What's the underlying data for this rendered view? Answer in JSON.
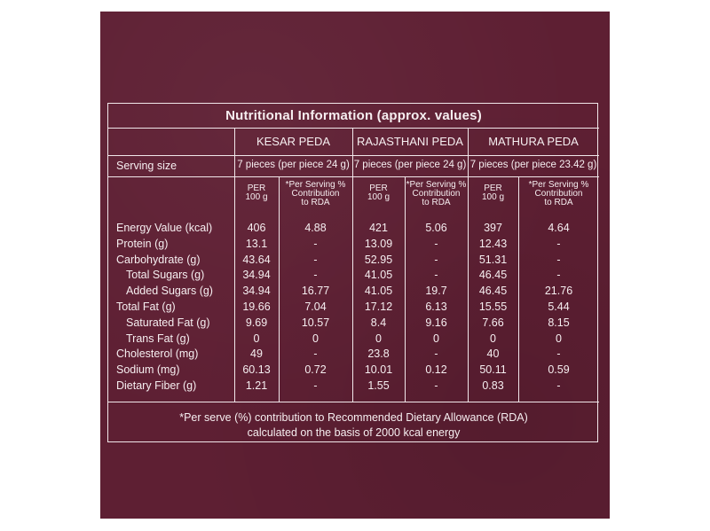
{
  "title": "Nutritional Information (approx. values)",
  "products": [
    "KESAR PEDA",
    "RAJASTHANI PEDA",
    "MATHURA PEDA"
  ],
  "serving_label": "Serving size",
  "serving_sizes": [
    "7 pieces (per piece 24 g)",
    "7 pieces (per piece 24 g)",
    "7 pieces (per piece 23.42 g)"
  ],
  "col_per_100": [
    "PER",
    "100 g"
  ],
  "col_rda": [
    "*Per Serving %",
    "Contribution",
    "to RDA"
  ],
  "rows": [
    {
      "label": "Energy Value (kcal)",
      "indent": false,
      "values": [
        "406",
        "4.88",
        "421",
        "5.06",
        "397",
        "4.64"
      ]
    },
    {
      "label": "Protein (g)",
      "indent": false,
      "values": [
        "13.1",
        "-",
        "13.09",
        "-",
        "12.43",
        "-"
      ]
    },
    {
      "label": "Carbohydrate (g)",
      "indent": false,
      "values": [
        "43.64",
        "-",
        "52.95",
        "-",
        "51.31",
        "-"
      ]
    },
    {
      "label": "Total Sugars (g)",
      "indent": true,
      "values": [
        "34.94",
        "-",
        "41.05",
        "-",
        "46.45",
        "-"
      ]
    },
    {
      "label": "Added Sugars (g)",
      "indent": true,
      "values": [
        "34.94",
        "16.77",
        "41.05",
        "19.7",
        "46.45",
        "21.76"
      ]
    },
    {
      "label": "Total Fat (g)",
      "indent": false,
      "values": [
        "19.66",
        "7.04",
        "17.12",
        "6.13",
        "15.55",
        "5.44"
      ]
    },
    {
      "label": "Saturated Fat (g)",
      "indent": true,
      "values": [
        "9.69",
        "10.57",
        "8.4",
        "9.16",
        "7.66",
        "8.15"
      ]
    },
    {
      "label": "Trans Fat (g)",
      "indent": true,
      "values": [
        "0",
        "0",
        "0",
        "0",
        "0",
        "0"
      ]
    },
    {
      "label": "Cholesterol (mg)",
      "indent": false,
      "values": [
        "49",
        "-",
        "23.8",
        "-",
        "40",
        "-"
      ]
    },
    {
      "label": "Sodium (mg)",
      "indent": false,
      "values": [
        "60.13",
        "0.72",
        "10.01",
        "0.12",
        "50.11",
        "0.59"
      ]
    },
    {
      "label": "Dietary Fiber (g)",
      "indent": false,
      "values": [
        "1.21",
        "-",
        "1.55",
        "-",
        "0.83",
        "-"
      ]
    }
  ],
  "footnote": [
    "*Per serve (%) contribution to Recommended Dietary Allowance (RDA)",
    "calculated on the basis of 2000 kcal energy"
  ],
  "colors": {
    "panel": "#5e1f33",
    "text": "#f6eef0"
  }
}
